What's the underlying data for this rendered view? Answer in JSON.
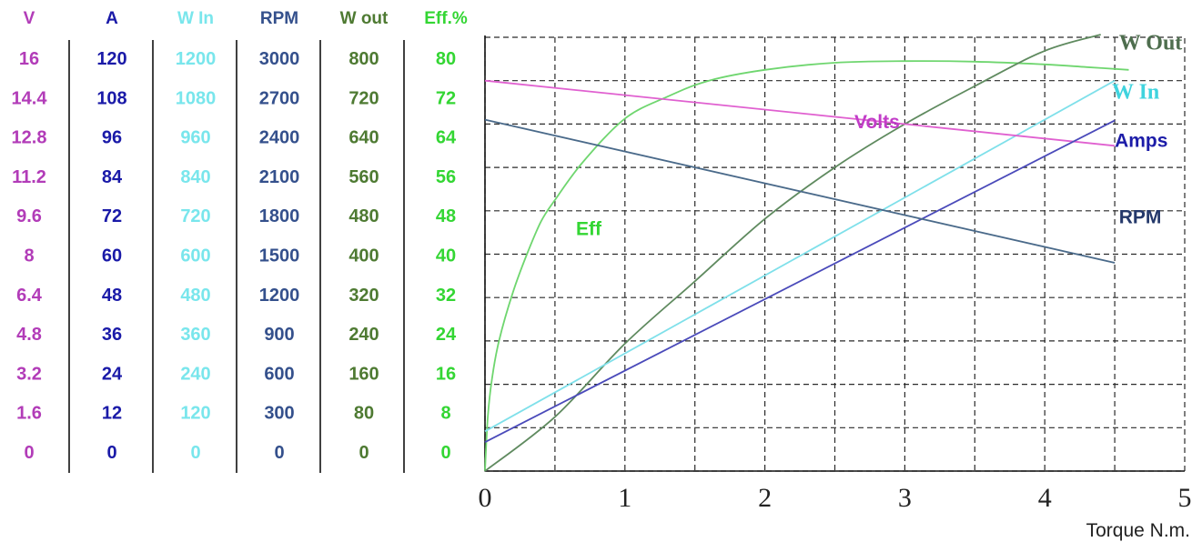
{
  "chart_data": {
    "type": "line",
    "xlabel": "Torque N.m.",
    "xlim": [
      0,
      5
    ],
    "x_ticks": [
      "0",
      "1",
      "2",
      "3",
      "4",
      "5"
    ],
    "grid": true,
    "scales": [
      {
        "key": "volts",
        "header": "V",
        "color": "#b23cb8",
        "ticks": [
          "16",
          "14.4",
          "12.8",
          "11.2",
          "9.6",
          "8",
          "6.4",
          "4.8",
          "3.2",
          "1.6",
          "0"
        ]
      },
      {
        "key": "amps",
        "header": "A",
        "color": "#1a1aa8",
        "ticks": [
          "120",
          "108",
          "96",
          "84",
          "72",
          "60",
          "48",
          "36",
          "24",
          "12",
          "0"
        ]
      },
      {
        "key": "win",
        "header": "W In",
        "color": "#79e6ec",
        "ticks": [
          "1200",
          "1080",
          "960",
          "840",
          "720",
          "600",
          "480",
          "360",
          "240",
          "120",
          "0"
        ]
      },
      {
        "key": "rpm",
        "header": "RPM",
        "color": "#34508c",
        "ticks": [
          "3000",
          "2700",
          "2400",
          "2100",
          "1800",
          "1500",
          "1200",
          "900",
          "600",
          "300",
          "0"
        ]
      },
      {
        "key": "wout",
        "header": "W out",
        "color": "#4e7a32",
        "ticks": [
          "800",
          "720",
          "640",
          "560",
          "480",
          "400",
          "320",
          "240",
          "160",
          "80",
          "0"
        ]
      },
      {
        "key": "eff",
        "header": "Eff.%",
        "color": "#33d633",
        "ticks": [
          "80",
          "72",
          "64",
          "56",
          "48",
          "40",
          "32",
          "24",
          "16",
          "8",
          "0"
        ]
      }
    ],
    "series": [
      {
        "name": "Eff",
        "scale": "eff",
        "ymax": 80,
        "color": "#6fd66f",
        "x": [
          0,
          0.02,
          0.05,
          0.1,
          0.2,
          0.3,
          0.4,
          0.5,
          0.7,
          1.0,
          1.3,
          1.6,
          2.0,
          2.5,
          3.0,
          3.5,
          4.0,
          4.3,
          4.6
        ],
        "y": [
          0,
          10,
          17,
          24,
          33,
          40,
          46,
          50,
          57,
          65,
          69,
          72,
          74,
          75.3,
          75.6,
          75.5,
          75,
          74.5,
          74
        ]
      },
      {
        "name": "W Out",
        "scale": "wout",
        "ymax": 800,
        "color": "#5f8a5f",
        "x": [
          0,
          0.5,
          1.0,
          1.5,
          2.0,
          2.5,
          3.0,
          3.5,
          4.0,
          4.4
        ],
        "y": [
          0,
          100,
          235,
          350,
          465,
          560,
          640,
          710,
          775,
          805
        ]
      },
      {
        "name": "W In",
        "scale": "win",
        "ymax": 1200,
        "color": "#7fe0ea",
        "x": [
          0,
          4.5
        ],
        "y": [
          110,
          1080
        ]
      },
      {
        "name": "Volts",
        "scale": "volts",
        "ymax": 16,
        "color": "#e060d0",
        "x": [
          0,
          4.5
        ],
        "y": [
          14.4,
          12.0
        ]
      },
      {
        "name": "Amps",
        "scale": "amps",
        "ymax": 120,
        "color": "#4a4aba",
        "x": [
          0,
          4.5
        ],
        "y": [
          8,
          97
        ]
      },
      {
        "name": "RPM",
        "scale": "rpm",
        "ymax": 3000,
        "color": "#4a6a8a",
        "x": [
          0,
          4.5
        ],
        "y": [
          2430,
          1440
        ]
      }
    ],
    "series_labels": [
      {
        "series": "Eff",
        "text": "Eff",
        "x": 0.65,
        "y_eff": 43.5,
        "color": "#33d633",
        "style": "sans"
      },
      {
        "series": "W Out",
        "text": "W Out",
        "x": 4.53,
        "y_eff": 77.7,
        "color": "#4e6e4e",
        "style": "serif"
      },
      {
        "series": "W In",
        "text": "W In",
        "x": 4.48,
        "y_eff": 68.7,
        "color": "#3fd3de",
        "style": "serif"
      },
      {
        "series": "Volts",
        "text": "Volts",
        "x": 2.64,
        "y_eff": 63.2,
        "color": "#c23cc8",
        "style": "sans"
      },
      {
        "series": "Amps",
        "text": "Amps",
        "x": 4.5,
        "y_eff": 59.8,
        "color": "#1c1ca8",
        "style": "sans"
      },
      {
        "series": "RPM",
        "text": "RPM",
        "x": 4.53,
        "y_eff": 45.7,
        "color": "#24386a",
        "style": "sans"
      }
    ]
  }
}
